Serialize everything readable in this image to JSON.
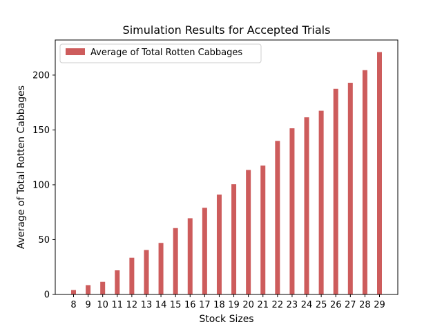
{
  "chart_data": {
    "type": "bar",
    "title": "Simulation Results for Accepted Trials",
    "xlabel": "Stock Sizes",
    "ylabel": "Average of Total Rotten Cabbages",
    "categories": [
      "8",
      "9",
      "10",
      "11",
      "12",
      "13",
      "14",
      "15",
      "16",
      "17",
      "18",
      "19",
      "20",
      "21",
      "22",
      "23",
      "24",
      "25",
      "26",
      "27",
      "28",
      "29"
    ],
    "series": [
      {
        "name": "Average of Total Rotten Cabbages",
        "color": "#cd5c5c",
        "values": [
          4,
          8.5,
          11.5,
          22,
          33.5,
          40.5,
          47,
          60.5,
          69.5,
          79,
          91,
          100.5,
          113.5,
          117.5,
          140,
          151.5,
          161.5,
          167.5,
          187.5,
          193,
          204.5,
          221
        ]
      }
    ],
    "ylim": [
      0,
      232
    ],
    "yticks": [
      0,
      50,
      100,
      150,
      200
    ],
    "grid": false,
    "legend": "top-left"
  }
}
